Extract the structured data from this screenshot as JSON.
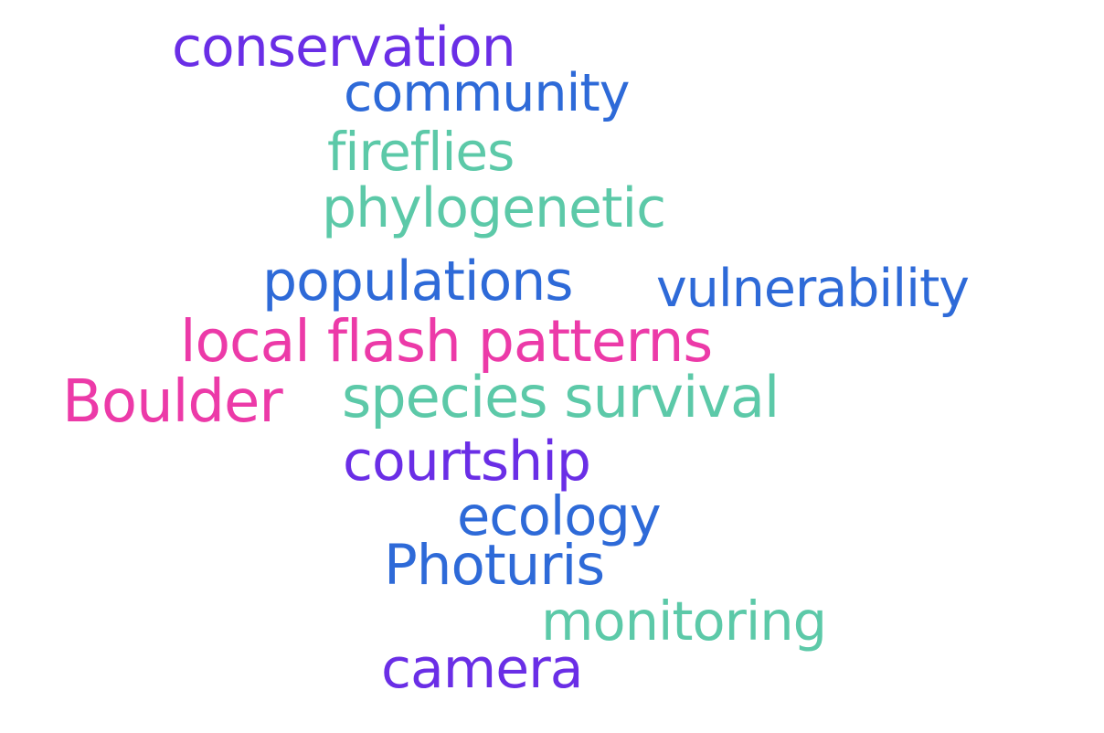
{
  "palette": {
    "purple": "#6a2ee6",
    "blue": "#2e6ad8",
    "teal": "#5cc9a8",
    "pink": "#ec3aa8"
  },
  "words": [
    {
      "id": "conservation",
      "text": "conservation",
      "color": "#6a2ee6"
    },
    {
      "id": "community",
      "text": "community",
      "color": "#2e6ad8"
    },
    {
      "id": "fireflies",
      "text": "fireflies",
      "color": "#5cc9a8"
    },
    {
      "id": "phylogenetic",
      "text": "phylogenetic",
      "color": "#5cc9a8"
    },
    {
      "id": "populations",
      "text": "populations",
      "color": "#2e6ad8"
    },
    {
      "id": "vulnerability",
      "text": "vulnerability",
      "color": "#2e6ad8"
    },
    {
      "id": "local",
      "text": "local flash patterns",
      "color": "#ec3aa8"
    },
    {
      "id": "boulder",
      "text": "Boulder",
      "color": "#ec3aa8"
    },
    {
      "id": "species",
      "text": "species survival",
      "color": "#5cc9a8"
    },
    {
      "id": "courtship",
      "text": "courtship",
      "color": "#6a2ee6"
    },
    {
      "id": "ecology",
      "text": "ecology",
      "color": "#2e6ad8"
    },
    {
      "id": "photuris",
      "text": "Photuris",
      "color": "#2e6ad8"
    },
    {
      "id": "monitoring",
      "text": "monitoring",
      "color": "#5cc9a8"
    },
    {
      "id": "camera",
      "text": "camera",
      "color": "#6a2ee6"
    }
  ]
}
